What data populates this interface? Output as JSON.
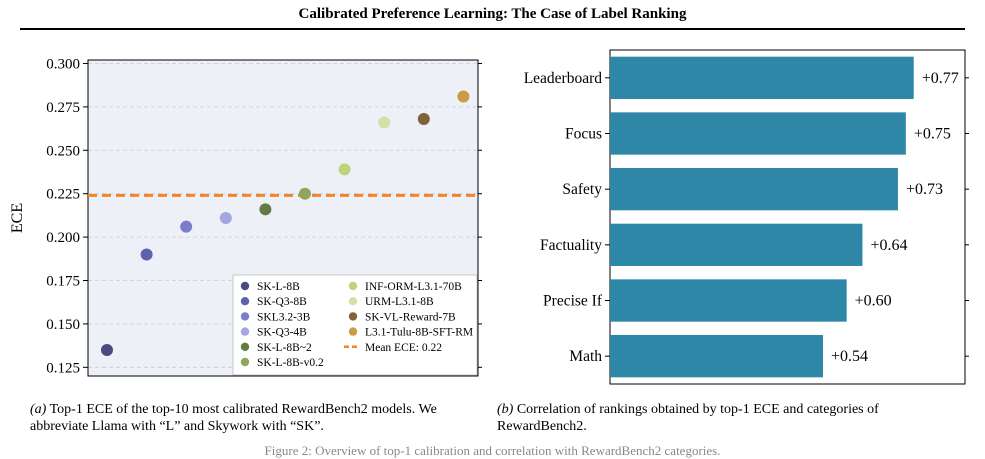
{
  "header": {
    "title": "Calibrated Preference Learning: The Case of Label Ranking"
  },
  "chart_data": [
    {
      "type": "scatter",
      "ylabel": "ECE",
      "xlabel": "",
      "ylim": [
        0.12,
        0.302
      ],
      "yticks": [
        0.125,
        0.15,
        0.175,
        0.2,
        0.225,
        0.25,
        0.275,
        0.3
      ],
      "ytick_labels": [
        "0.125",
        "0.150",
        "0.175",
        "0.200",
        "0.225",
        "0.250",
        "0.275",
        "0.300"
      ],
      "grid": "horizontal dashed",
      "legend_position": "lower-right",
      "series": [
        {
          "name": "SK-L-8B",
          "x": 1,
          "y": 0.135,
          "color": "#4a4a82"
        },
        {
          "name": "SK-Q3-8B",
          "x": 2,
          "y": 0.19,
          "color": "#5e62ad"
        },
        {
          "name": "SKL3.2-3B",
          "x": 3,
          "y": 0.206,
          "color": "#7a7ccc"
        },
        {
          "name": "SK-Q3-4B",
          "x": 4,
          "y": 0.211,
          "color": "#a5a5e0"
        },
        {
          "name": "SK-L-8B~2",
          "x": 5,
          "y": 0.216,
          "color": "#647a45"
        },
        {
          "name": "SK-L-8B-v0.2",
          "x": 6,
          "y": 0.225,
          "color": "#8fa75c"
        },
        {
          "name": "INF-ORM-L3.1-70B",
          "x": 7,
          "y": 0.239,
          "color": "#bdd57a"
        },
        {
          "name": "URM-L3.1-8B",
          "x": 8,
          "y": 0.266,
          "color": "#d5e0a8"
        },
        {
          "name": "SK-VL-Reward-7B",
          "x": 9,
          "y": 0.268,
          "color": "#846239"
        },
        {
          "name": "L3.1-Tulu-8B-SFT-RM",
          "x": 10,
          "y": 0.281,
          "color": "#c99c45"
        }
      ],
      "mean_line": {
        "name": "Mean ECE: 0.22",
        "y": 0.224,
        "color": "#f2852a",
        "style": "dashed"
      }
    },
    {
      "type": "bar",
      "orientation": "horizontal",
      "categories": [
        "Leaderboard",
        "Focus",
        "Safety",
        "Factuality",
        "Precise If",
        "Math"
      ],
      "values": [
        0.77,
        0.75,
        0.73,
        0.64,
        0.6,
        0.54
      ],
      "value_labels": [
        "+0.77",
        "+0.75",
        "+0.73",
        "+0.64",
        "+0.60",
        "+0.54"
      ],
      "xlim": [
        0,
        0.9
      ],
      "color": "#2f87a8"
    }
  ],
  "captions": {
    "a_label": "(a)",
    "a_text": "Top-1 ECE of the top-10 most calibrated RewardBench2 models. We abbreviate Llama with “L” and Skywork with “SK”.",
    "b_label": "(b)",
    "b_text": "Correlation of rankings obtained by top-1 ECE and categories of RewardBench2."
  },
  "footer": {
    "note": "Figure 2: Overview of top-1 calibration and correlation with RewardBench2 categories."
  }
}
